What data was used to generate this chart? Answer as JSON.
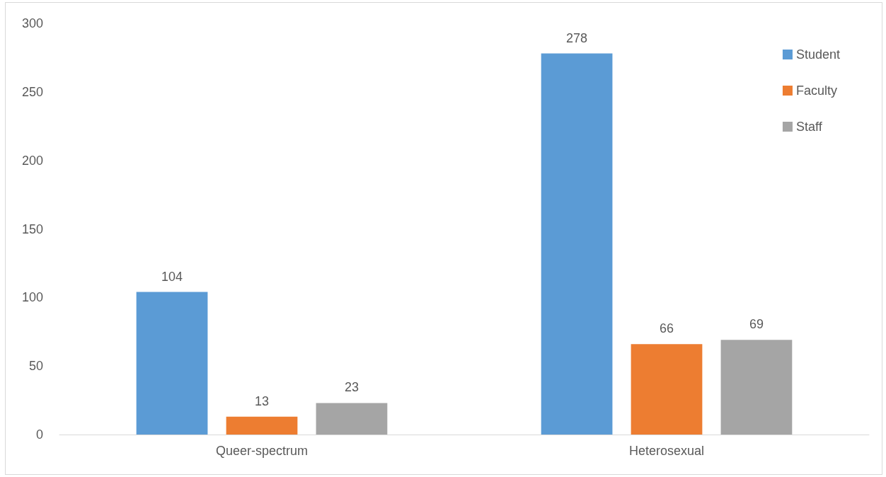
{
  "chart_data": {
    "type": "bar",
    "categories": [
      "Queer-spectrum",
      "Heterosexual"
    ],
    "series": [
      {
        "name": "Student",
        "color": "#5b9bd5",
        "values": [
          104,
          278
        ]
      },
      {
        "name": "Faculty",
        "color": "#ed7d31",
        "values": [
          13,
          66
        ]
      },
      {
        "name": "Staff",
        "color": "#a5a5a5",
        "values": [
          23,
          69
        ]
      }
    ],
    "ylim": [
      0,
      300
    ],
    "yticks": [
      0,
      50,
      100,
      150,
      200,
      250,
      300
    ],
    "grid": false,
    "legend": "right",
    "data_labels": true
  }
}
